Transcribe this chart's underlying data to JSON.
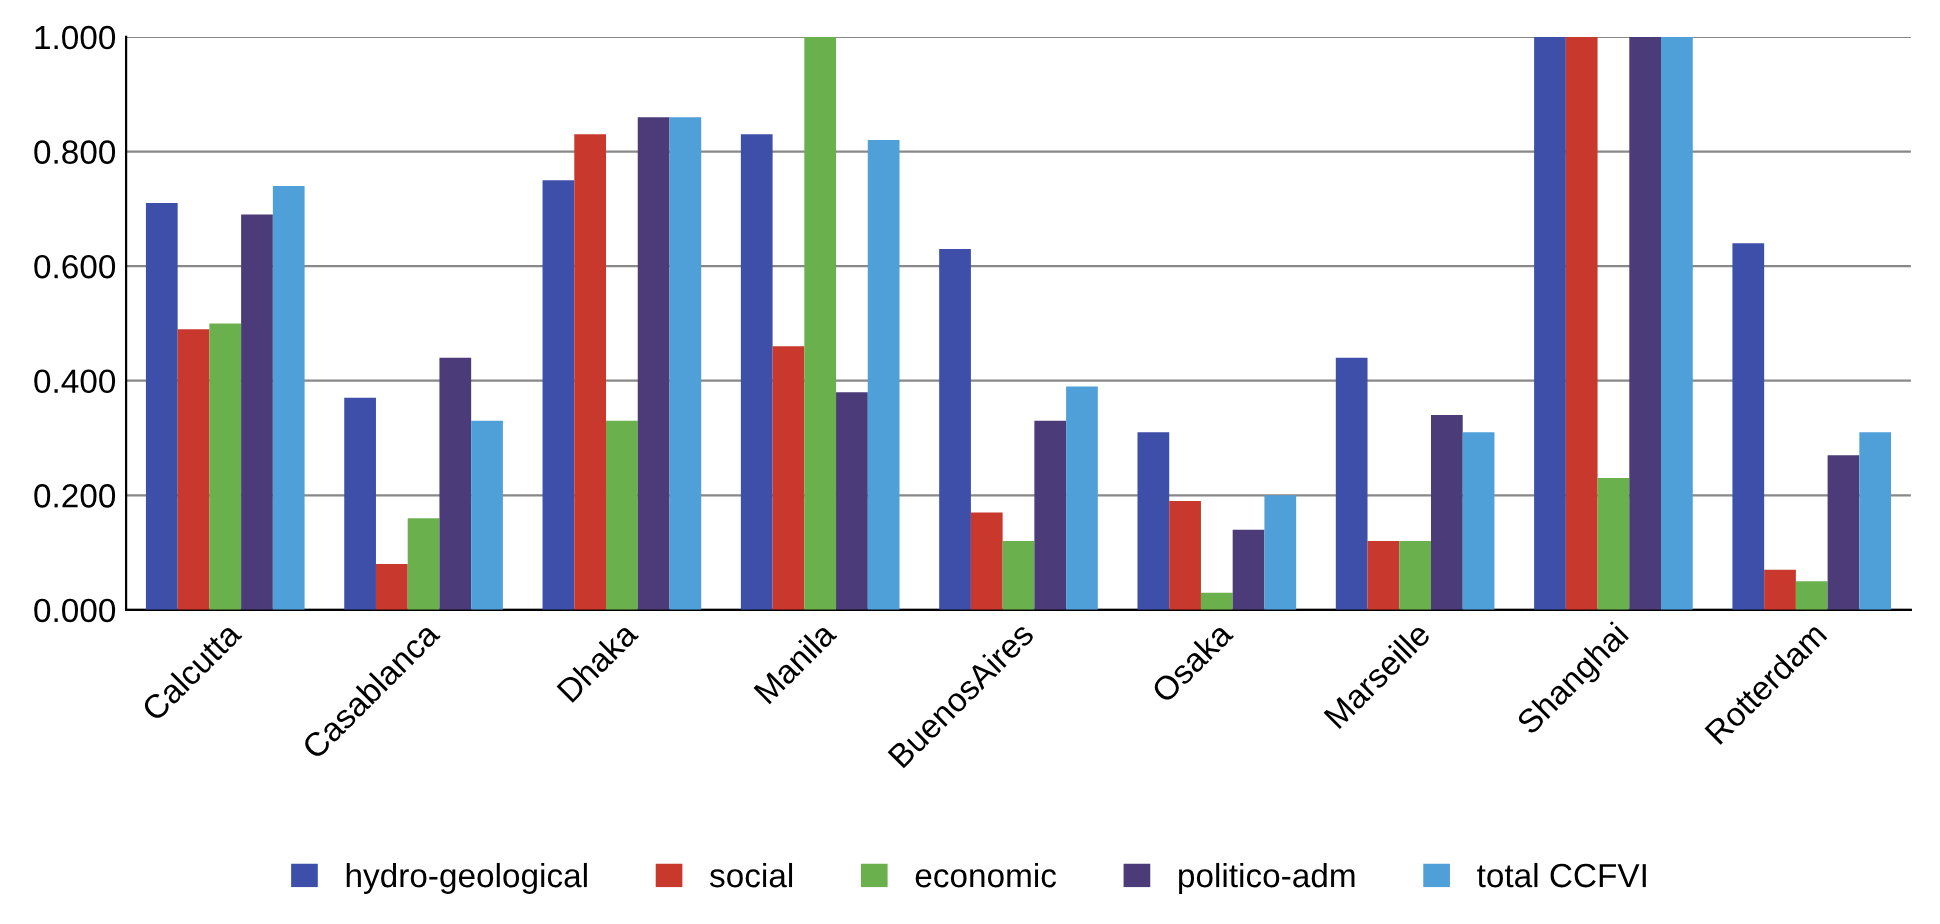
{
  "chart_data": {
    "type": "bar",
    "categories": [
      "Calcutta",
      "Casablanca",
      "Dhaka",
      "Manila",
      "BuenosAires",
      "Osaka",
      "Marseille",
      "Shanghai",
      "Rotterdam"
    ],
    "series": [
      {
        "name": "hydro-geological",
        "color": "#3d4fa8",
        "values": [
          0.71,
          0.37,
          0.75,
          0.83,
          0.63,
          0.31,
          0.44,
          1.0,
          0.64
        ]
      },
      {
        "name": "social",
        "color": "#c8382d",
        "values": [
          0.49,
          0.08,
          0.83,
          0.46,
          0.17,
          0.19,
          0.12,
          1.0,
          0.07
        ]
      },
      {
        "name": "economic",
        "color": "#6ab04c",
        "values": [
          0.5,
          0.16,
          0.33,
          1.0,
          0.12,
          0.03,
          0.12,
          0.23,
          0.05
        ]
      },
      {
        "name": "politico-adm",
        "color": "#4b3b78",
        "values": [
          0.69,
          0.44,
          0.86,
          0.38,
          0.33,
          0.14,
          0.34,
          1.0,
          0.27
        ]
      },
      {
        "name": "total CCFVI",
        "color": "#4f9fd8",
        "values": [
          0.74,
          0.33,
          0.86,
          0.82,
          0.39,
          0.2,
          0.31,
          1.0,
          0.31
        ]
      }
    ],
    "ylim": [
      0,
      1.0
    ],
    "yticks": [
      {
        "value": 0,
        "label": "0.000"
      },
      {
        "value": 0.2,
        "label": "0.200"
      },
      {
        "value": 0.4,
        "label": "0.400"
      },
      {
        "value": 0.6,
        "label": "0.600"
      },
      {
        "value": 0.8,
        "label": "0.800"
      },
      {
        "value": 1.0,
        "label": "1.000"
      }
    ],
    "grid": "y",
    "legend": "bottom"
  }
}
